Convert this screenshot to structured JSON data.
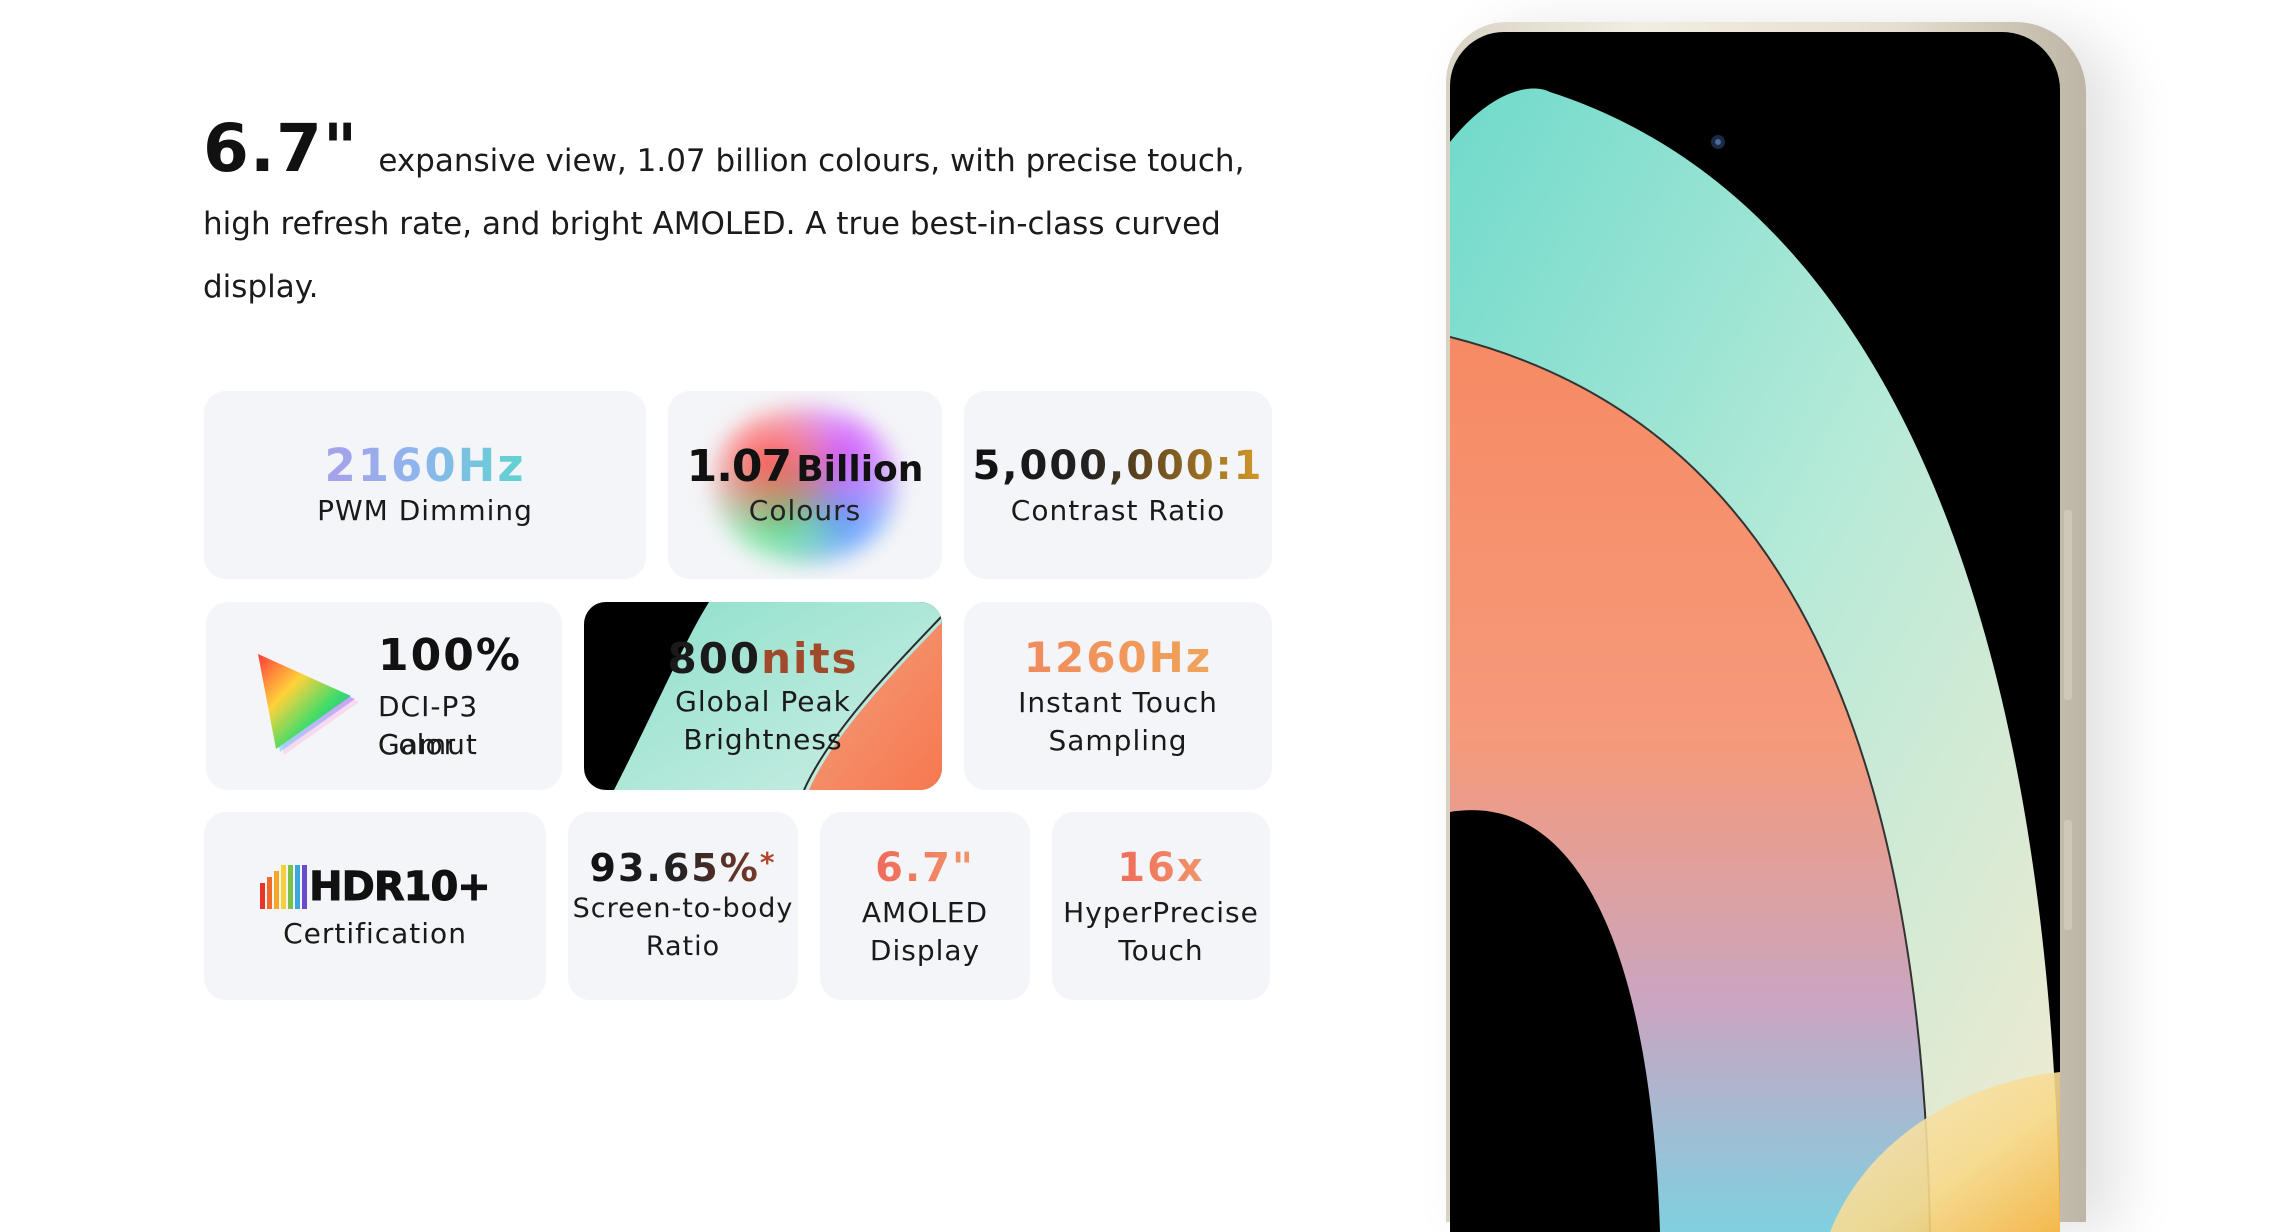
{
  "headline": {
    "size": "6.7\"",
    "text": "expansive view, 1.07 billion colours, with precise touch, high refresh rate, and bright AMOLED. A true best-in-class curved display."
  },
  "cards": {
    "pwm": {
      "value": "2160Hz",
      "label": "PWM Dimming"
    },
    "colours": {
      "value": "1.07",
      "unit": "Billion",
      "label": "Colours"
    },
    "contrast": {
      "value": "5,000,000:1",
      "label": "Contrast Ratio"
    },
    "gamut": {
      "value": "100%",
      "label_line1": "DCI-P3 Color",
      "label_line2": "Gamut"
    },
    "brightness": {
      "value": "800",
      "unit": "nits",
      "label_line1": "Global Peak",
      "label_line2": "Brightness"
    },
    "touch_sampling": {
      "value": "1260Hz",
      "label_line1": "Instant Touch",
      "label_line2": "Sampling"
    },
    "hdr": {
      "logo_text": "HDR10+",
      "label": "Certification"
    },
    "screen_ratio": {
      "value": "93.65%",
      "mark": "*",
      "label_line1": "Screen-to-body",
      "label_line2": "Ratio"
    },
    "amoled": {
      "value": "6.7\"",
      "label_line1": "AMOLED",
      "label_line2": "Display"
    },
    "hyper_touch": {
      "value": "16x",
      "label_line1": "HyperPrecise",
      "label_line2": "Touch"
    }
  },
  "colors": {
    "card_bg": "#f4f5f8",
    "mint": "#a8e6d6",
    "coral": "#f68a64",
    "gold": "#d79a2a"
  }
}
